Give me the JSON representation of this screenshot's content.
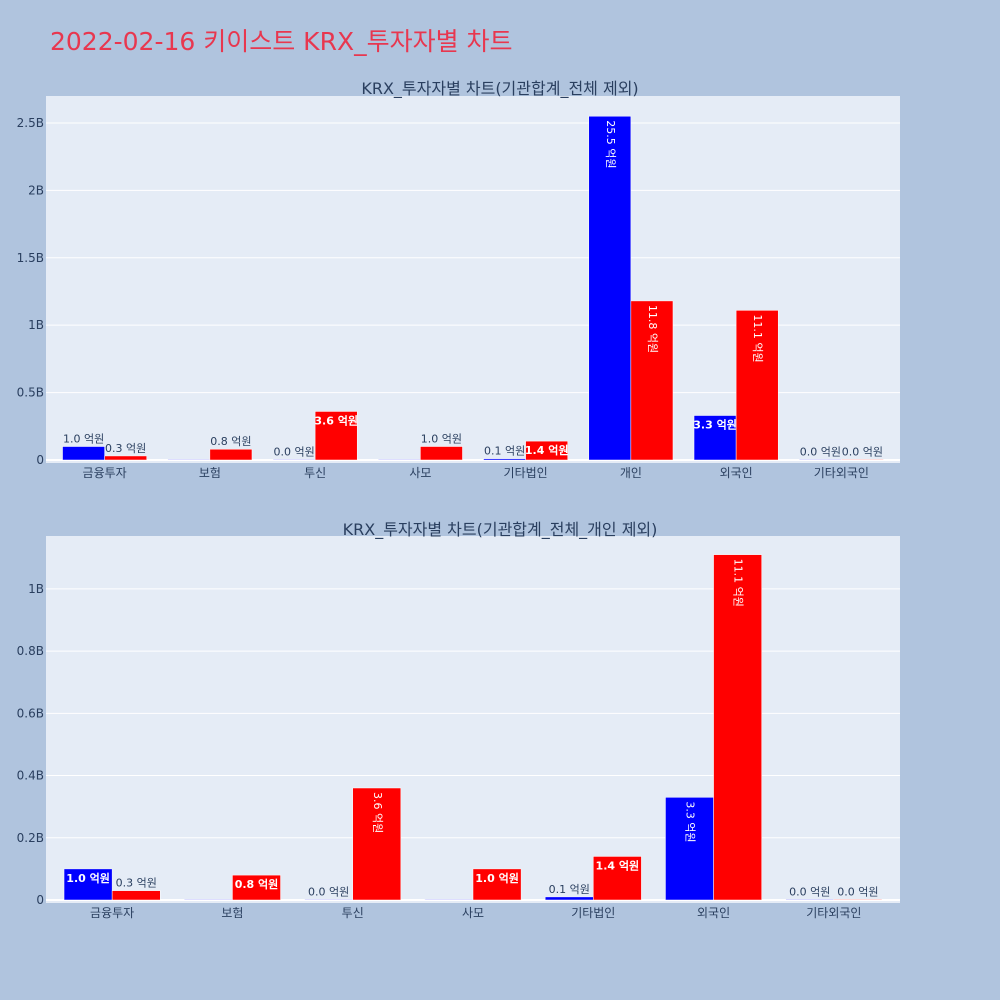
{
  "title": "2022-02-16 키이스트 KRX_투자자별 차트",
  "colors": {
    "buy": "#0000ff",
    "sell": "#ff0000",
    "plot_bg": "#e5ecf6",
    "page_bg": "#b0c4de",
    "title": "#e8374f"
  },
  "chart_data": [
    {
      "type": "bar",
      "title": "KRX_투자자별 차트(기관합계_전체 제외)",
      "categories": [
        "금융투자",
        "보험",
        "투신",
        "사모",
        "기타법인",
        "개인",
        "외국인",
        "기타외국인"
      ],
      "series": [
        {
          "values": [
            100000000,
            0,
            1000000,
            0,
            10000000,
            2550000000,
            330000000,
            2000000
          ],
          "labels": [
            "1.0 억원",
            "",
            "0.0 억원",
            "",
            "0.1 억원",
            "25.5 억원",
            "3.3 억원",
            "0.0 억원"
          ]
        },
        {
          "values": [
            30000000,
            80000000,
            360000000,
            100000000,
            140000000,
            1180000000,
            1110000000,
            2000000
          ],
          "labels": [
            "0.3 억원",
            "0.8 억원",
            "3.6 억원",
            "1.0 억원",
            "1.4 억원",
            "11.8 억원",
            "11.1 억원",
            "0.0 억원"
          ]
        }
      ],
      "ylim": [
        0,
        2700000000
      ],
      "yticks": [
        0,
        500000000,
        1000000000,
        1500000000,
        2000000000,
        2500000000
      ],
      "ytick_labels": [
        "0",
        "0.5B",
        "1B",
        "1.5B",
        "2B",
        "2.5B"
      ],
      "grid": true
    },
    {
      "type": "bar",
      "title": "KRX_투자자별 차트(기관합계_전체_개인 제외)",
      "categories": [
        "금융투자",
        "보험",
        "투신",
        "사모",
        "기타법인",
        "외국인",
        "기타외국인"
      ],
      "series": [
        {
          "values": [
            100000000,
            0,
            1000000,
            0,
            10000000,
            330000000,
            2000000
          ],
          "labels": [
            "1.0 억원",
            "",
            "0.0 억원",
            "",
            "0.1 억원",
            "3.3 억원",
            "0.0 억원"
          ]
        },
        {
          "values": [
            30000000,
            80000000,
            360000000,
            100000000,
            140000000,
            1110000000,
            2000000
          ],
          "labels": [
            "0.3 억원",
            "0.8 억원",
            "3.6 억원",
            "1.0 억원",
            "1.4 억원",
            "11.1 억원",
            "0.0 억원"
          ]
        }
      ],
      "ylim": [
        0,
        1170000000
      ],
      "yticks": [
        0,
        200000000,
        400000000,
        600000000,
        800000000,
        1000000000
      ],
      "ytick_labels": [
        "0",
        "0.2B",
        "0.4B",
        "0.6B",
        "0.8B",
        "1B"
      ],
      "grid": true
    }
  ]
}
